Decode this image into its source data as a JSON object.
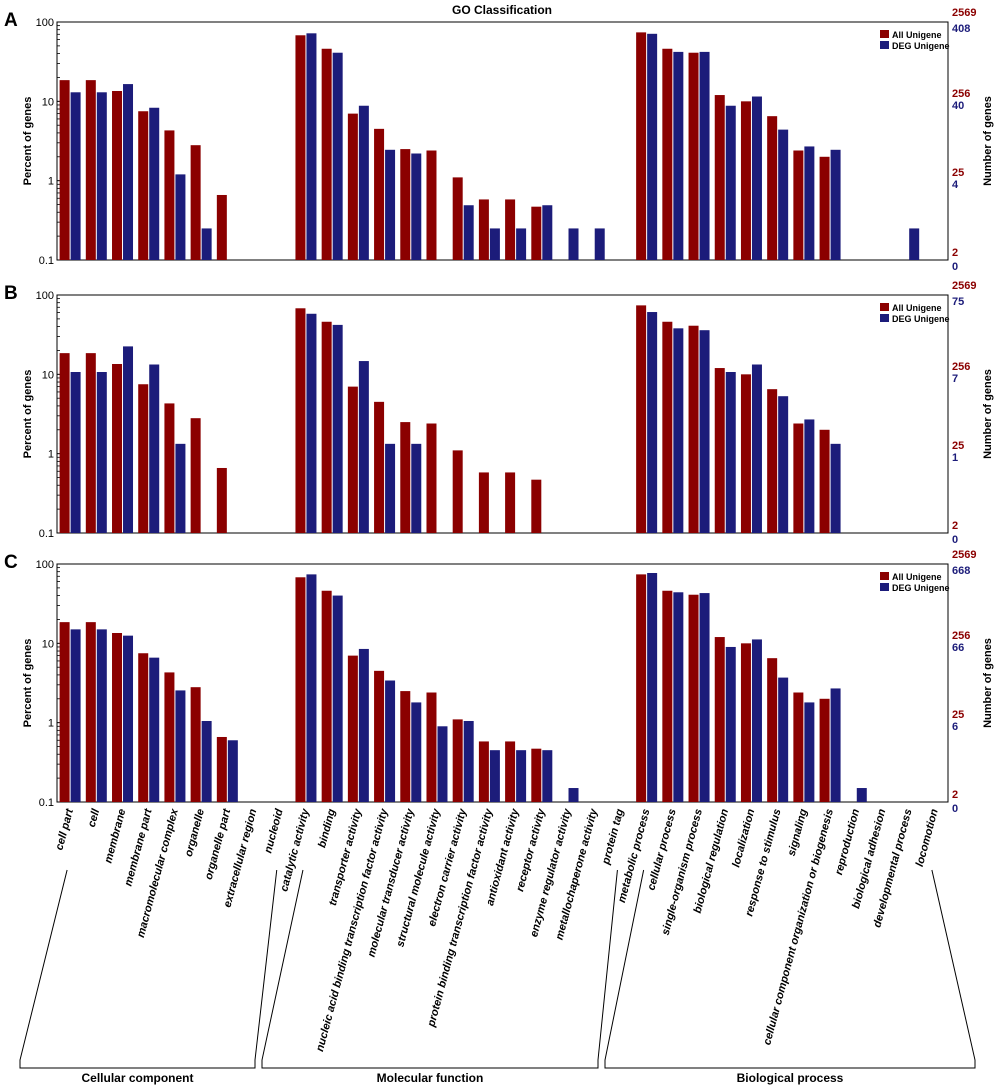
{
  "title": "GO Classification",
  "colors": {
    "all": "#8b0000",
    "deg": "#1c1c7a",
    "axis": "#000000"
  },
  "categories": [
    "cell part",
    "cell",
    "membrane",
    "membrane part",
    "macromolecular complex",
    "organelle",
    "organelle part",
    "extracellular region",
    "nucleoid",
    "catalytic activity",
    "binding",
    "transporter activity",
    "nucleic acid binding transcription factor activity",
    "molecular transducer activity",
    "structural molecule activity",
    "electron carrier activity",
    "protein binding transcription factor activity",
    "antioxidant activity",
    "receptor activity",
    "enzyme regulator activity",
    "metallochaperone activity",
    "protein tag",
    "metabolic process",
    "cellular process",
    "single-organism process",
    "biological regulation",
    "localization",
    "response to stimulus",
    "signaling",
    "cellular component organization or biogenesis",
    "reproduction",
    "biological adhesion",
    "developmental process",
    "locomotion"
  ],
  "groups": [
    {
      "label": "Cellular component",
      "from": 0,
      "to": 8
    },
    {
      "label": "Molecular function",
      "from": 9,
      "to": 21
    },
    {
      "label": "Biological process",
      "from": 22,
      "to": 33
    }
  ],
  "chart_data": [
    {
      "type": "bar",
      "panel": "A",
      "title": "GO Classification",
      "ylabel": "Percent of genes",
      "y2label": "Number of genes",
      "yscale": "log",
      "ylim": [
        0.1,
        100
      ],
      "yticks": [
        "0.1",
        "1",
        "10",
        "100"
      ],
      "right_ticks_all": [
        "2569",
        "256",
        "25",
        "2"
      ],
      "right_ticks_deg": [
        "408",
        "40",
        "4",
        "0"
      ],
      "legend": [
        "All Unigene",
        "DEG Unigene"
      ],
      "legend_position": "top-right",
      "series": [
        {
          "name": "All Unigene",
          "values": [
            18.5,
            18.5,
            13.5,
            7.5,
            4.3,
            2.8,
            0.66,
            null,
            null,
            68,
            46,
            7,
            4.5,
            2.5,
            2.4,
            1.1,
            0.58,
            0.58,
            0.47,
            null,
            null,
            null,
            74,
            46,
            41,
            12,
            10,
            6.5,
            2.4,
            2.0,
            null,
            null,
            null,
            null
          ]
        },
        {
          "name": "DEG Unigene",
          "values": [
            13,
            13,
            16.5,
            8.3,
            1.2,
            0.25,
            null,
            null,
            null,
            72,
            41,
            8.8,
            2.45,
            2.2,
            null,
            0.49,
            0.25,
            0.25,
            0.49,
            0.25,
            0.25,
            null,
            71,
            42,
            42,
            8.8,
            11.5,
            4.4,
            2.7,
            2.45,
            null,
            null,
            0.25,
            null
          ]
        }
      ]
    },
    {
      "type": "bar",
      "panel": "B",
      "ylabel": "Percent of genes",
      "y2label": "Number of genes",
      "yscale": "log",
      "ylim": [
        0.1,
        100
      ],
      "yticks": [
        "0.1",
        "1",
        "10",
        "100"
      ],
      "right_ticks_all": [
        "2569",
        "256",
        "25",
        "2"
      ],
      "right_ticks_deg": [
        "75",
        "7",
        "1",
        "0"
      ],
      "legend": [
        "All Unigene",
        "DEG Unigene"
      ],
      "legend_position": "top-right",
      "series": [
        {
          "name": "All Unigene",
          "values": [
            18.5,
            18.5,
            13.5,
            7.5,
            4.3,
            2.8,
            0.66,
            null,
            null,
            68,
            46,
            7,
            4.5,
            2.5,
            2.4,
            1.1,
            0.58,
            0.58,
            0.47,
            null,
            null,
            null,
            74,
            46,
            41,
            12,
            10,
            6.5,
            2.4,
            2.0,
            null,
            null,
            null,
            null
          ]
        },
        {
          "name": "DEG Unigene",
          "values": [
            10.7,
            10.7,
            22.5,
            13.3,
            1.33,
            null,
            null,
            null,
            null,
            58,
            42,
            14.7,
            1.33,
            1.33,
            null,
            null,
            null,
            null,
            null,
            null,
            null,
            null,
            61,
            38,
            36,
            10.7,
            13.3,
            5.3,
            2.7,
            1.33,
            null,
            null,
            null,
            null
          ]
        }
      ]
    },
    {
      "type": "bar",
      "panel": "C",
      "ylabel": "Percent of genes",
      "y2label": "Number of genes",
      "yscale": "log",
      "ylim": [
        0.1,
        100
      ],
      "yticks": [
        "0.1",
        "1",
        "10",
        "100"
      ],
      "right_ticks_all": [
        "2569",
        "256",
        "25",
        "2"
      ],
      "right_ticks_deg": [
        "668",
        "66",
        "6",
        "0"
      ],
      "legend": [
        "All Unigene",
        "DEG Unigene"
      ],
      "legend_position": "top-right",
      "series": [
        {
          "name": "All Unigene",
          "values": [
            18.5,
            18.5,
            13.5,
            7.5,
            4.3,
            2.8,
            0.66,
            null,
            null,
            68,
            46,
            7,
            4.5,
            2.5,
            2.4,
            1.1,
            0.58,
            0.58,
            0.47,
            null,
            null,
            null,
            74,
            46,
            41,
            12,
            10,
            6.5,
            2.4,
            2.0,
            null,
            null,
            null,
            null
          ]
        },
        {
          "name": "DEG Unigene",
          "values": [
            15,
            15,
            12.5,
            6.6,
            2.55,
            1.05,
            0.6,
            null,
            null,
            74,
            40,
            8.5,
            3.4,
            1.8,
            0.9,
            1.05,
            0.45,
            0.45,
            0.45,
            0.15,
            null,
            null,
            77,
            44,
            43,
            9,
            11.2,
            3.7,
            1.8,
            2.7,
            0.15,
            null,
            null,
            null
          ]
        }
      ]
    }
  ],
  "panel_labels": [
    "A",
    "B",
    "C"
  ]
}
